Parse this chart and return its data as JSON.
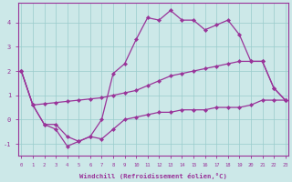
{
  "xlabel": "Windchill (Refroidissement éolien,°C)",
  "background_color": "#cce8e8",
  "line_color": "#993399",
  "x": [
    0,
    1,
    2,
    3,
    4,
    5,
    6,
    7,
    8,
    9,
    10,
    11,
    12,
    13,
    14,
    15,
    16,
    17,
    18,
    19,
    20,
    21,
    22,
    23
  ],
  "upper": [
    2.0,
    0.6,
    -0.2,
    -0.2,
    -0.7,
    -0.9,
    -0.7,
    0.0,
    1.9,
    2.3,
    3.3,
    4.2,
    4.1,
    4.5,
    4.1,
    4.1,
    3.7,
    3.9,
    4.1,
    3.5,
    2.4,
    2.4,
    1.3,
    0.8
  ],
  "lower": [
    2.0,
    0.6,
    -0.2,
    -0.4,
    -1.1,
    -0.9,
    -0.7,
    -0.8,
    -0.4,
    0.0,
    0.1,
    0.2,
    0.3,
    0.3,
    0.4,
    0.4,
    0.4,
    0.5,
    0.5,
    0.5,
    0.6,
    0.8,
    0.8,
    0.8
  ],
  "diag": [
    2.0,
    0.6,
    0.65,
    0.7,
    0.75,
    0.8,
    0.85,
    0.9,
    1.0,
    1.1,
    1.2,
    1.4,
    1.6,
    1.8,
    1.9,
    2.0,
    2.1,
    2.2,
    2.3,
    2.4,
    2.4,
    2.4,
    1.3,
    0.8
  ],
  "ylim": [
    -1.5,
    4.8
  ],
  "yticks": [
    -1,
    0,
    1,
    2,
    3,
    4
  ],
  "xlim": [
    -0.3,
    23.3
  ],
  "grid_color": "#99cccc"
}
